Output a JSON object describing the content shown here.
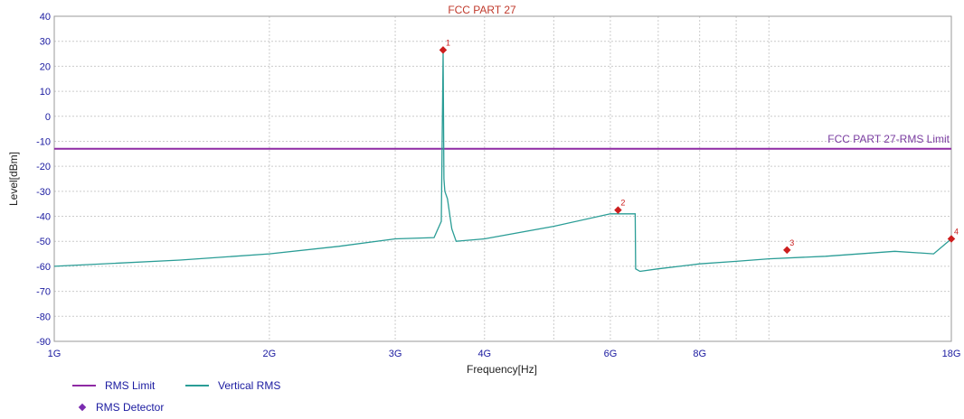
{
  "chart_data": {
    "type": "line",
    "title": "FCC PART 27",
    "xlabel": "Frequency[Hz]",
    "ylabel": "Level[dBm]",
    "x_scale": "log",
    "xlim_hz": [
      1000000000,
      18000000000
    ],
    "ylim": [
      -90,
      40
    ],
    "y_ticks": [
      40,
      30,
      20,
      10,
      0,
      -10,
      -20,
      -30,
      -40,
      -50,
      -60,
      -70,
      -80,
      -90
    ],
    "x_tick_labels": [
      {
        "hz": 1000000000,
        "label": "1G"
      },
      {
        "hz": 2000000000,
        "label": "2G"
      },
      {
        "hz": 3000000000,
        "label": "3G"
      },
      {
        "hz": 4000000000,
        "label": "4G"
      },
      {
        "hz": 6000000000,
        "label": "6G"
      },
      {
        "hz": 8000000000,
        "label": "8G"
      },
      {
        "hz": 18000000000,
        "label": "18G"
      }
    ],
    "x_grid_hz": [
      2000000000,
      3000000000,
      4000000000,
      5000000000,
      6000000000,
      7000000000,
      8000000000,
      9000000000,
      10000000000
    ],
    "grid": true,
    "limit_line": {
      "name": "RMS Limit",
      "label": "FCC PART 27-RMS Limit",
      "value": -13
    },
    "series": [
      {
        "name": "Vertical RMS",
        "x_hz": [
          1000000000,
          1500000000,
          2000000000,
          2500000000,
          3000000000,
          3400000000,
          3480000000,
          3500000000,
          3510000000,
          3520000000,
          3550000000,
          3600000000,
          3650000000,
          4000000000,
          5000000000,
          6000000000,
          6500000000,
          6510000000,
          6600000000,
          7000000000,
          8000000000,
          9000000000,
          10000000000,
          12000000000,
          15000000000,
          17000000000,
          18000000000
        ],
        "y": [
          -60,
          -57.5,
          -55,
          -52,
          -49,
          -48.5,
          -42,
          26,
          -25,
          -30,
          -33,
          -45,
          -50,
          -49,
          -44,
          -39,
          -39,
          -61,
          -62,
          -61,
          -59,
          -58,
          -57,
          -56,
          -54,
          -55,
          -49
        ]
      }
    ],
    "markers": [
      {
        "label": "1",
        "hz": 3500000000,
        "level": 26.5
      },
      {
        "label": "2",
        "hz": 6150000000,
        "level": -37.5
      },
      {
        "label": "3",
        "hz": 10600000000,
        "level": -53.5
      },
      {
        "label": "4",
        "hz": 18000000000,
        "level": -49
      }
    ],
    "legend": {
      "limit_label": "RMS Limit",
      "series_label": "Vertical RMS",
      "detector_label": "RMS Detector",
      "placement": "bottom-left"
    },
    "colors": {
      "trace": "#2a9d96",
      "limit": "#8e2aa4",
      "marker": "#cc1e1e",
      "title": "#c0392b",
      "limit_label": "#7a3ca0",
      "axis_text": "#1a1aa0",
      "grid": "#cccccc",
      "detector": "#7a2bb0"
    }
  }
}
